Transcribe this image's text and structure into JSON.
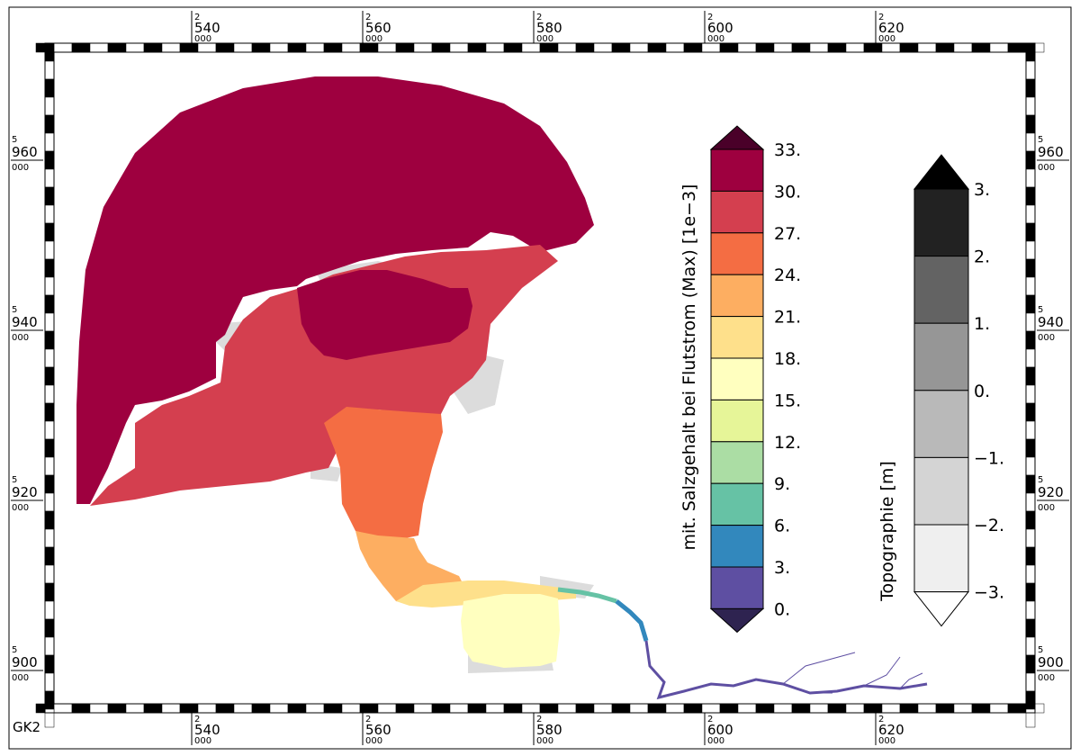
{
  "projection_label": "GK2",
  "grid": {
    "easting_prefix": "2",
    "northing_prefix": "5",
    "suffix": "000",
    "easting": [
      "540",
      "560",
      "580",
      "600",
      "620"
    ],
    "northing": [
      "960",
      "940",
      "920",
      "900"
    ]
  },
  "salinity_legend": {
    "title": "mit. Salzgehalt bei Flutstrom (Max) [1e−3]",
    "labels": [
      "33.",
      "30.",
      "27.",
      "24.",
      "21.",
      "18.",
      "15.",
      "12.",
      "9.",
      "6.",
      "3.",
      "0."
    ],
    "over_color": "#4a0029",
    "under_color": "#2e2350",
    "colors_top_to_bottom": [
      "#9e003f",
      "#d43f4f",
      "#f46d43",
      "#fdae61",
      "#fee08b",
      "#ffffbf",
      "#e6f598",
      "#abdda4",
      "#66c2a5",
      "#3288bd",
      "#5e4fa2"
    ]
  },
  "topo_legend": {
    "title": "Topographie [m]",
    "labels": [
      "3.",
      "2.",
      "1.",
      "0.",
      "−1.",
      "−2.",
      "−3."
    ],
    "over_color": "#000000",
    "under_color": "#ffffff",
    "colors_top_to_bottom": [
      "#222222",
      "#636363",
      "#969696",
      "#b9b9b9",
      "#d4d4d4",
      "#efefef"
    ]
  },
  "map_colors": {
    "outer_sea": "#9e003f",
    "mid_sea": "#d43f4f",
    "estuary_mouth": "#f46d43",
    "estuary_mid": "#fdae61",
    "estuary_inner": "#fee08b",
    "estuary_upper": "#ffffbf",
    "tidal_flat": "#dcdcdc",
    "river_green": "#66c2a5",
    "river_blue": "#3288bd",
    "river_purple": "#5e4fa2"
  }
}
